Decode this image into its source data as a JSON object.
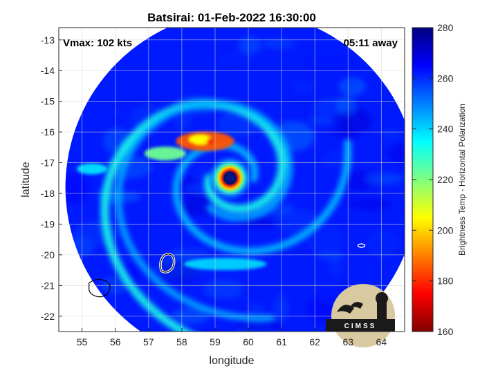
{
  "chart_data": {
    "type": "heatmap",
    "title": "Batsirai: 01-Feb-2022 16:30:00",
    "xlabel": "longitude",
    "ylabel": "latitude",
    "xlim": [
      54.3,
      64.7
    ],
    "ylim": [
      -22.5,
      -12.6
    ],
    "xticks": [
      "55",
      "56",
      "57",
      "58",
      "59",
      "60",
      "61",
      "62",
      "63",
      "64"
    ],
    "yticks": [
      "-13",
      "-14",
      "-15",
      "-16",
      "-17",
      "-18",
      "-19",
      "-20",
      "-21",
      "-22"
    ],
    "xtick_values": [
      55,
      56,
      57,
      58,
      59,
      60,
      61,
      62,
      63,
      64
    ],
    "ytick_values": [
      -13,
      -14,
      -15,
      -16,
      -17,
      -18,
      -19,
      -20,
      -21,
      -22
    ],
    "grid": true,
    "swath_center": [
      59.8,
      -17.8
    ],
    "swath_radius_deg": 5.3,
    "storm_eye": [
      59.45,
      -17.5
    ],
    "background_temp_K": 262,
    "colorbar": {
      "label": "Brightness Temp - Horizontal Polarization",
      "min": 160,
      "max": 280,
      "ticks": [
        "280",
        "260",
        "240",
        "220",
        "200",
        "180",
        "160"
      ],
      "tick_values": [
        280,
        260,
        240,
        220,
        200,
        180,
        160
      ],
      "colormap": "jet"
    },
    "annotations": {
      "vmax": "Vmax: 102 kts",
      "time_away": "05:11 away"
    },
    "features": [
      {
        "name": "eye",
        "lon": 59.45,
        "lat": -17.5,
        "temp": 262
      },
      {
        "name": "eyewall",
        "lon": 59.45,
        "lat": -17.5,
        "temp": 185
      },
      {
        "name": "northern convection",
        "lon": 58.7,
        "lat": -16.3,
        "temp": 185
      },
      {
        "name": "outer rainband",
        "lon": 57.5,
        "lat": -16.7,
        "temp": 222
      },
      {
        "name": "southern rainband",
        "lon": 59.3,
        "lat": -20.3,
        "temp": 240
      },
      {
        "name": "western rainband",
        "lon": 55.3,
        "lat": -17.2,
        "temp": 238
      }
    ],
    "islands": [
      {
        "name": "Mauritius",
        "lon": 57.55,
        "lat": -20.25
      },
      {
        "name": "Reunion",
        "lon": 55.5,
        "lat": -21.1
      },
      {
        "name": "Rodrigues",
        "lon": 63.4,
        "lat": -19.7
      }
    ]
  },
  "logo": {
    "text": "CIMSS"
  },
  "colors": {
    "outside_swath": "#ffffff",
    "grid": "#d9d9d9",
    "coast": "#000000"
  }
}
